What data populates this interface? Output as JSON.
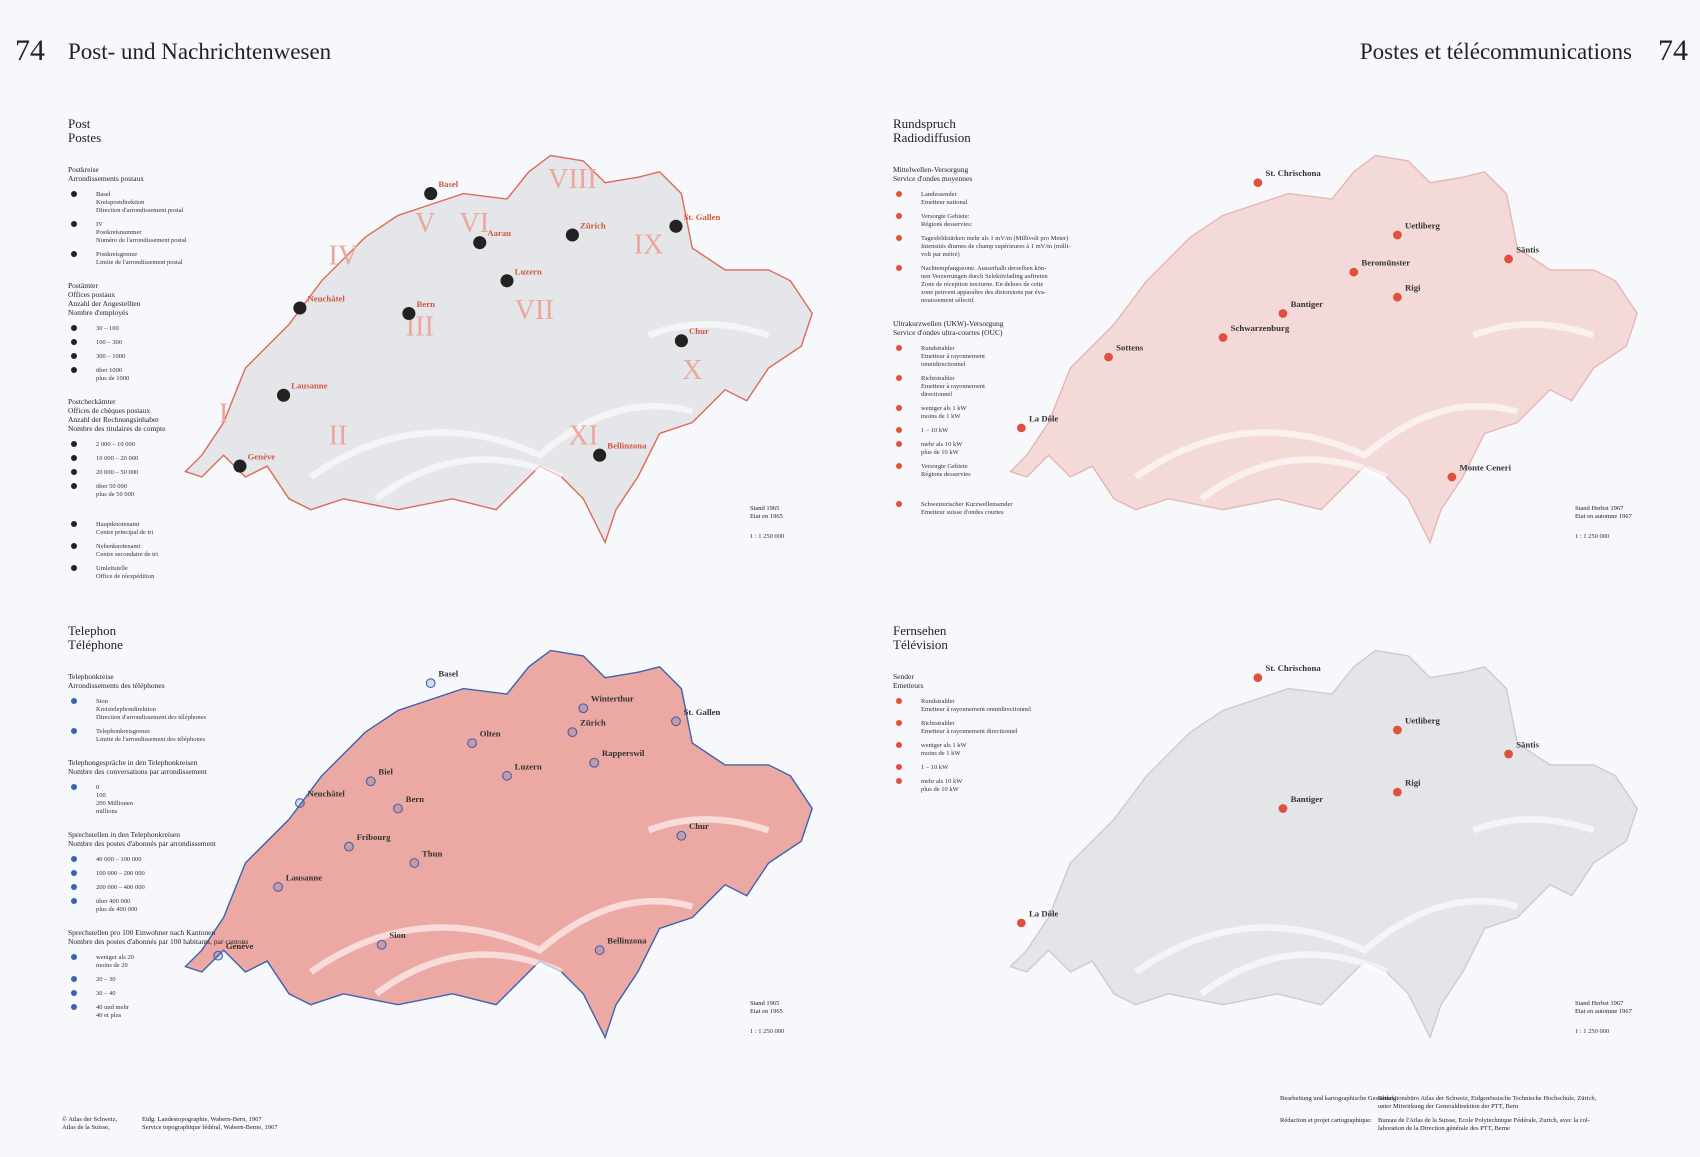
{
  "header": {
    "left_number": "74",
    "left_title": "Post- und Nachrichtenwesen",
    "right_title": "Postes et télécommunications",
    "right_number": "74"
  },
  "maps": [
    {
      "title_de": "Post",
      "title_fr": "Postes",
      "legend": [
        {
          "heading": [
            "Postkreise",
            "Arrondissements postaux"
          ],
          "items": [
            [
              "Basel",
              "Kreispostdirektion",
              "Direction d'arrondissement postal"
            ],
            [
              "IV",
              "Postkreisnummer",
              "Numéro de l'arrondissement postal"
            ],
            [
              "Postkreisgrenze",
              "Limite de l'arrondissement postal"
            ]
          ]
        },
        {
          "heading": [
            "Postämter",
            "Offices postaux",
            "Anzahl der Angestellten",
            "Nombre d'employés"
          ],
          "items": [
            [
              "30 – 100"
            ],
            [
              "100 – 300"
            ],
            [
              "300 – 1000"
            ],
            [
              "über 1000",
              "plus de 1000"
            ]
          ]
        },
        {
          "heading": [
            "Postcheckämter",
            "Offices de chèques postaux",
            "Anzahl der Rechnungsinhaber",
            "Nombre des titulaires de compte"
          ],
          "items": [
            [
              "2 000 – 10 000"
            ],
            [
              "10 000 – 20 000"
            ],
            [
              "20 000 – 50 000"
            ],
            [
              "über 50 000",
              "plus de 50 000"
            ]
          ]
        },
        {
          "heading": [],
          "items": [
            [
              "Hauptknotenamt",
              "Centre principal de tri"
            ],
            [
              "Nebenknotenamt",
              "Centre secondaire de tri"
            ],
            [
              "Umleitstelle",
              "Office de réexpédition"
            ]
          ]
        }
      ],
      "places": [
        "Basel",
        "Zürich",
        "Bern",
        "Luzern",
        "Lausanne",
        "Genève",
        "Chur",
        "Bellinzona",
        "St. Gallen",
        "Neuchâtel",
        "Aarau"
      ],
      "districts": [
        "I",
        "II",
        "III",
        "IV",
        "V",
        "VI",
        "VII",
        "VIII",
        "IX",
        "X",
        "XI"
      ],
      "stand": [
        "Stand 1965",
        "Etat en 1965"
      ],
      "scale": "1 : 1 250 000"
    },
    {
      "title_de": "Rundspruch",
      "title_fr": "Radiodiffusion",
      "legend": [
        {
          "heading": [
            "Mittelwellen-Versorgung",
            "Service d'ondes moyennes"
          ],
          "items": [
            [
              "Landessender",
              "Emetteur national"
            ],
            [
              "Versorgte Gebiete:",
              "Régions desservies:"
            ],
            [
              "Tagesfeldstärken mehr als 1 mV/m (Millivolt pro Meter)",
              "Intensités diurnes de champ supérieures à 1 mV/m (milli-",
              "volt par mètre)"
            ],
            [
              "Nachtempfangszone. Ausserhalb derselben kön-",
              "nen Verzerrungen durch Selektivfading auftreten",
              "Zone de réception nocturne. En dehors de cette",
              "zone peuvent apparaître des distorsions par éva-",
              "nouissement sélectif"
            ]
          ]
        },
        {
          "heading": [
            "Ultrakurzwellen (UKW)-Versorgung",
            "Service d'ondes ultra-courtes (OUC)"
          ],
          "items": [
            [
              "Rundstrahler",
              "Emetteur à rayonnement",
              "omnidirectionnel"
            ],
            [
              "Richtstrahler",
              "Emetteur à rayonnement",
              "directionnel"
            ],
            [
              "weniger als 1 kW",
              "moins de 1 kW"
            ],
            [
              "1 – 10 kW"
            ],
            [
              "mehr als 10 kW",
              "plus de 10 kW"
            ],
            [
              "Versorgte Gebiete",
              "Régions desservies"
            ]
          ]
        },
        {
          "heading": [],
          "items": [
            [
              "Schweizerischer Kurzwellensender",
              "Emetteur suisse d'ondes courtes"
            ]
          ]
        }
      ],
      "places": [
        "Beromünster",
        "Schwarzenburg",
        "Sottens",
        "Monte Ceneri",
        "St. Chrischona",
        "Uetliberg",
        "Säntis",
        "La Dôle",
        "Rigi",
        "Bantiger"
      ],
      "stand": [
        "Stand Herbst 1967",
        "Etat en automne 1967"
      ],
      "scale": "1 : 1 250 000"
    },
    {
      "title_de": "Telephon",
      "title_fr": "Téléphone",
      "legend": [
        {
          "heading": [
            "Telephonkreise",
            "Arrondissements des téléphones"
          ],
          "items": [
            [
              "Sion",
              "Kreistelephondirektion",
              "Direction d'arrondissement des téléphones"
            ],
            [
              "Telephonkreisgrenze",
              "Limite de l'arrondissement des téléphones"
            ]
          ]
        },
        {
          "heading": [
            "Telephongespräche in den Telephonkreisen",
            "Nombre des conversations par arrondissement"
          ],
          "items": [
            [
              "0",
              "100",
              "200 Millionen",
              "millions"
            ]
          ]
        },
        {
          "heading": [
            "Sprechstellen in den Telephonkreisen",
            "Nombre des postes d'abonnés par arrondissement"
          ],
          "items": [
            [
              "40 000 – 100 000"
            ],
            [
              "100 000 – 200 000"
            ],
            [
              "200 000 – 400 000"
            ],
            [
              "über 400 000",
              "plus de 400 000"
            ]
          ]
        },
        {
          "heading": [
            "Sprechstellen pro 100 Einwohner nach Kantonen",
            "Nombre des postes d'abonnés par 100 habitants, par cantons"
          ],
          "items": [
            [
              "weniger als 20",
              "moins de 20"
            ],
            [
              "20 – 30"
            ],
            [
              "30 – 40"
            ],
            [
              "40 und mehr",
              "40 et plus"
            ]
          ]
        }
      ],
      "places": [
        "Basel",
        "Olten",
        "Zürich",
        "Winterthur",
        "St. Gallen",
        "Biel",
        "Luzern",
        "Bern",
        "Neuchâtel",
        "Fribourg",
        "Thun",
        "Lausanne",
        "Chur",
        "Genève",
        "Sion",
        "Bellinzona",
        "Rapperswil"
      ],
      "stand": [
        "Stand 1965",
        "Etat en 1965"
      ],
      "scale": "1 : 1 250 000"
    },
    {
      "title_de": "Fernsehen",
      "title_fr": "Télévision",
      "legend": [
        {
          "heading": [
            "Sender",
            "Emetteurs"
          ],
          "items": [
            [
              "Rundstrahler",
              "Emetteur à rayonnement omnidirectionnel"
            ],
            [
              "Richtstrahler",
              "Emetteur à rayonnement directionnel"
            ],
            [
              "weniger als 1 kW",
              "moins de 1 kW"
            ],
            [
              "1 – 10 kW"
            ],
            [
              "mehr als 10 kW",
              "plus de 10 kW"
            ]
          ]
        }
      ],
      "places": [
        "St. Chrischona",
        "Uetliberg",
        "Säntis",
        "Bantiger",
        "Rigi",
        "La Dôle"
      ],
      "stand": [
        "Stand Herbst 1967",
        "Etat en automne 1967"
      ],
      "scale": "1 : 1 250 000"
    }
  ],
  "footer": {
    "copyright": [
      "© Atlas der Schweiz,",
      "Atlas de la Suisse,"
    ],
    "topo": [
      "Eidg. Landestopographie, Wabern-Bern, 1967",
      "Service topographique fédéral, Wabern-Berne, 1967"
    ],
    "credits": [
      [
        "Bearbeitung und kartographische Gestaltung:",
        "Redaktionsbüro Atlas der Schweiz, Eidgenössische Technische Hochschule, Zürich,",
        "unter Mitwirkung der Generaldirektion der PTT, Bern"
      ],
      [
        "Rédaction et projet cartographique:",
        "Bureau de l'Atlas de la Suisse, Ecole Polytechnique Fédérale, Zurich, avec la col-",
        "laboration de la Direction générale des PTT, Berne"
      ]
    ]
  }
}
